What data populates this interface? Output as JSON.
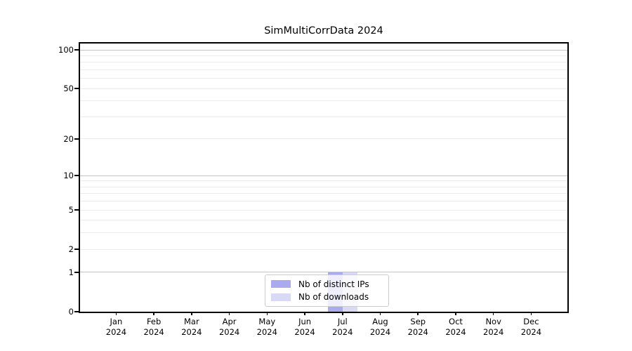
{
  "chart_data": {
    "type": "bar",
    "title": "SimMultiCorrData 2024",
    "x_ticks": [
      {
        "month": "Jan",
        "year": "2024"
      },
      {
        "month": "Feb",
        "year": "2024"
      },
      {
        "month": "Mar",
        "year": "2024"
      },
      {
        "month": "Apr",
        "year": "2024"
      },
      {
        "month": "May",
        "year": "2024"
      },
      {
        "month": "Jun",
        "year": "2024"
      },
      {
        "month": "Jul",
        "year": "2024"
      },
      {
        "month": "Aug",
        "year": "2024"
      },
      {
        "month": "Sep",
        "year": "2024"
      },
      {
        "month": "Oct",
        "year": "2024"
      },
      {
        "month": "Nov",
        "year": "2024"
      },
      {
        "month": "Dec",
        "year": "2024"
      }
    ],
    "series": [
      {
        "name": "Nb of distinct IPs",
        "color": "#aaaaef",
        "values": [
          0,
          0,
          0,
          0,
          0,
          0,
          1,
          0,
          0,
          0,
          0,
          0
        ]
      },
      {
        "name": "Nb of downloads",
        "color": "#d9d9f6",
        "values": [
          0,
          0,
          0,
          0,
          0,
          0,
          1,
          0,
          0,
          0,
          0,
          0
        ]
      }
    ],
    "yaxis": {
      "scale": "log1p",
      "ylim": [
        0,
        112
      ],
      "ticks": [
        {
          "value": 100,
          "label": "100"
        },
        {
          "value": 50,
          "label": "50"
        },
        {
          "value": 20,
          "label": "20"
        },
        {
          "value": 10,
          "label": "10"
        },
        {
          "value": 5,
          "label": "5"
        },
        {
          "value": 2,
          "label": "2"
        },
        {
          "value": 1,
          "label": "1"
        },
        {
          "value": 0,
          "label": "0"
        }
      ],
      "major_gridlines": [
        1,
        10,
        100
      ],
      "minor_gridlines": [
        2,
        3,
        4,
        5,
        6,
        7,
        8,
        9,
        20,
        30,
        40,
        50,
        60,
        70,
        80,
        90
      ]
    },
    "legend": {
      "position": "bottom-center",
      "entries": [
        {
          "label": "Nb of distinct IPs"
        },
        {
          "label": "Nb of downloads"
        }
      ]
    },
    "grid": "horizontal-only"
  },
  "colors": {
    "background": "#ffffff",
    "axis": "#000000",
    "grid_major": "#c4c4c4",
    "grid_minor": "#ebebeb",
    "legend_border": "#cccccc"
  }
}
